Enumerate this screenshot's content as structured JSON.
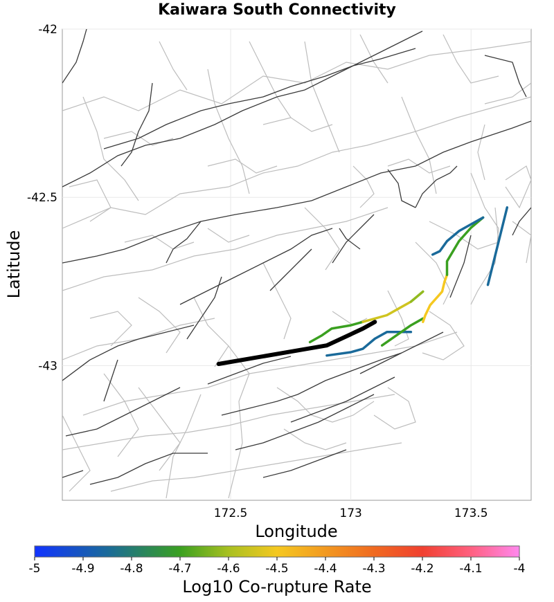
{
  "chart_data": {
    "type": "map",
    "title": "Kaiwara South Connectivity",
    "xlabel": "Longitude",
    "ylabel": "Latitude",
    "xlim": [
      171.8,
      173.75
    ],
    "ylim": [
      -43.4,
      -42.0
    ],
    "x_ticks": [
      {
        "v": 172.5,
        "label": "172.5"
      },
      {
        "v": 173,
        "label": "173"
      },
      {
        "v": 173.5,
        "label": "173.5"
      }
    ],
    "y_ticks": [
      {
        "v": -42,
        "label": "-42"
      },
      {
        "v": -42.5,
        "label": "-42.5"
      },
      {
        "v": -43,
        "label": "-43"
      }
    ],
    "colorbar": {
      "label": "Log10 Co-rupture Rate",
      "min": -5,
      "max": -4,
      "ticks": [
        "-5",
        "-4.9",
        "-4.8",
        "-4.7",
        "-4.6",
        "-4.5",
        "-4.4",
        "-4.3",
        "-4.2",
        "-4.1",
        "-4"
      ],
      "stops": [
        {
          "v": -5.0,
          "color": "#1133ff"
        },
        {
          "v": -4.85,
          "color": "#1a6a9a"
        },
        {
          "v": -4.7,
          "color": "#3aa020"
        },
        {
          "v": -4.6,
          "color": "#a8c020"
        },
        {
          "v": -4.5,
          "color": "#f5c820"
        },
        {
          "v": -4.3,
          "color": "#f06a20"
        },
        {
          "v": -4.2,
          "color": "#f04030"
        },
        {
          "v": -4.1,
          "color": "#ff6080"
        },
        {
          "v": -4.0,
          "color": "#ff88ee"
        }
      ]
    },
    "target_fault": {
      "name": "Kaiwara South",
      "color": "#000000",
      "coords": [
        [
          172.45,
          -42.995
        ],
        [
          172.9,
          -42.94
        ],
        [
          173.05,
          -42.89
        ],
        [
          173.1,
          -42.87
        ]
      ]
    },
    "ruptures": [
      {
        "rate": -4.85,
        "coords": [
          [
            172.9,
            -42.97
          ],
          [
            173.0,
            -42.96
          ],
          [
            173.05,
            -42.95
          ],
          [
            173.1,
            -42.92
          ],
          [
            173.15,
            -42.9
          ],
          [
            173.25,
            -42.9
          ]
        ]
      },
      {
        "rate": -4.7,
        "coords": [
          [
            173.13,
            -42.94
          ],
          [
            173.25,
            -42.88
          ],
          [
            173.3,
            -42.86
          ]
        ]
      },
      {
        "rate": -4.7,
        "coords": [
          [
            172.83,
            -42.93
          ],
          [
            172.88,
            -42.91
          ],
          [
            172.92,
            -42.89
          ],
          [
            173.0,
            -42.88
          ],
          [
            173.05,
            -42.87
          ]
        ]
      },
      {
        "rate": -4.55,
        "coords": [
          [
            173.05,
            -42.87
          ],
          [
            173.15,
            -42.85
          ],
          [
            173.2,
            -42.83
          ],
          [
            173.25,
            -42.81
          ]
        ]
      },
      {
        "rate": -4.62,
        "coords": [
          [
            173.25,
            -42.81
          ],
          [
            173.3,
            -42.78
          ]
        ]
      },
      {
        "rate": -4.5,
        "coords": [
          [
            173.3,
            -42.87
          ],
          [
            173.31,
            -42.85
          ],
          [
            173.33,
            -42.82
          ],
          [
            173.38,
            -42.78
          ],
          [
            173.39,
            -42.75
          ],
          [
            173.4,
            -42.73
          ]
        ]
      },
      {
        "rate": -4.7,
        "coords": [
          [
            173.4,
            -42.73
          ],
          [
            173.4,
            -42.69
          ],
          [
            173.45,
            -42.63
          ],
          [
            173.5,
            -42.59
          ],
          [
            173.55,
            -42.56
          ]
        ]
      },
      {
        "rate": -4.85,
        "coords": [
          [
            173.34,
            -42.67
          ],
          [
            173.37,
            -42.66
          ],
          [
            173.4,
            -42.63
          ],
          [
            173.45,
            -42.6
          ],
          [
            173.5,
            -42.58
          ],
          [
            173.55,
            -42.56
          ]
        ]
      },
      {
        "rate": -4.85,
        "coords": [
          [
            173.57,
            -42.76
          ],
          [
            173.65,
            -42.53
          ]
        ]
      }
    ]
  }
}
